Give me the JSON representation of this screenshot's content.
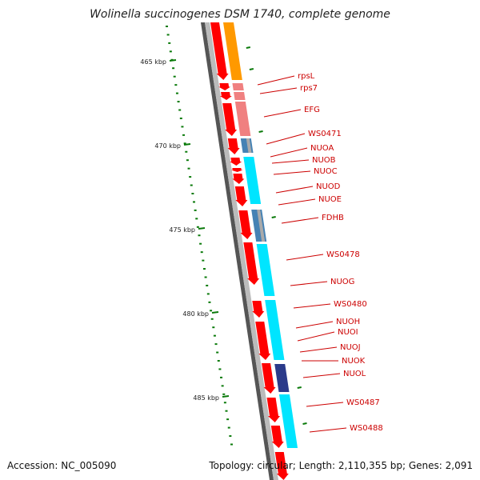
{
  "header": {
    "title": "Wolinella succinogenes DSM 1740, complete genome"
  },
  "footer": {
    "accession": "Accession: NC_005090",
    "summary": "Topology: circular; Length: 2,110,355 bp; Genes: 2,091"
  },
  "scale": {
    "labels": [
      "465 kbp",
      "470 kbp",
      "475 kbp",
      "480 kbp",
      "485 kbp"
    ]
  },
  "genes": [
    {
      "name": "rpsL"
    },
    {
      "name": "rps7"
    },
    {
      "name": "EFG"
    },
    {
      "name": "WS0471"
    },
    {
      "name": "NUOA"
    },
    {
      "name": "NUOB"
    },
    {
      "name": "NUOC"
    },
    {
      "name": "NUOD"
    },
    {
      "name": "NUOE"
    },
    {
      "name": "FDHB"
    },
    {
      "name": "WS0478"
    },
    {
      "name": "NUOG"
    },
    {
      "name": "WS0480"
    },
    {
      "name": "NUOH"
    },
    {
      "name": "NUOI"
    },
    {
      "name": "NUOJ"
    },
    {
      "name": "NUOK"
    },
    {
      "name": "NUOL"
    },
    {
      "name": "WS0487"
    },
    {
      "name": "WS0488"
    }
  ],
  "colors": {
    "label": "#cc0000",
    "cds": "#ff0000",
    "backbone": "#888888",
    "orange": "#ff9900",
    "pink": "#f08080",
    "cyan": "#00e5ff",
    "steel": "#4682b4",
    "gray": "#aaaaaa",
    "navy": "#2b3a8a",
    "scale_tick": "#0a7a0a"
  }
}
